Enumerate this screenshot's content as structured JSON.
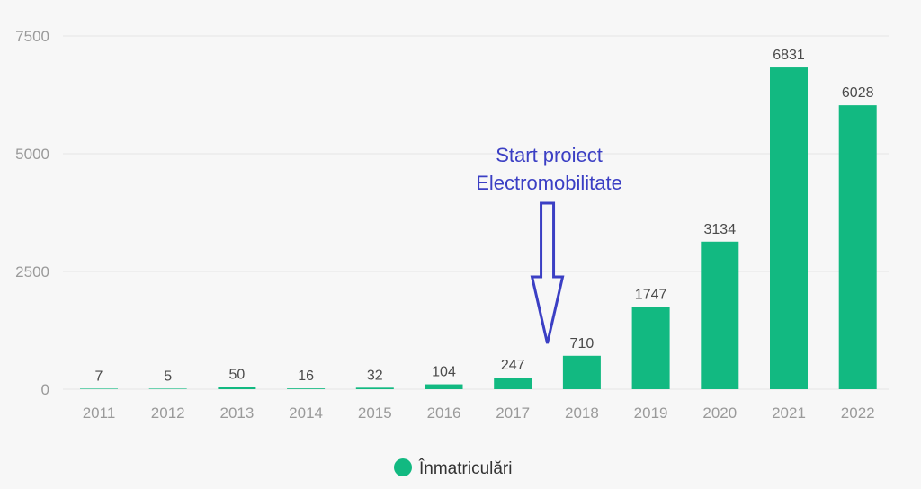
{
  "chart_data": {
    "type": "bar",
    "categories": [
      "2011",
      "2012",
      "2013",
      "2014",
      "2015",
      "2016",
      "2017",
      "2018",
      "2019",
      "2020",
      "2021",
      "2022"
    ],
    "series": [
      {
        "name": "Înmatriculări",
        "values": [
          7,
          5,
          50,
          16,
          32,
          104,
          247,
          710,
          1747,
          3134,
          6831,
          6028
        ]
      }
    ],
    "ylim": [
      0,
      7500
    ],
    "yticks": [
      0,
      2500,
      5000,
      7500
    ],
    "grid": true,
    "legend": "bottom",
    "annotation": {
      "lines": [
        "Start proiect",
        "Electromobilitate"
      ],
      "between": [
        "2017",
        "2018"
      ],
      "arrow": "down"
    }
  },
  "colors": {
    "bar": "#12b981",
    "grid": "#e6e6e6",
    "annotation": "#3b3fc4"
  }
}
